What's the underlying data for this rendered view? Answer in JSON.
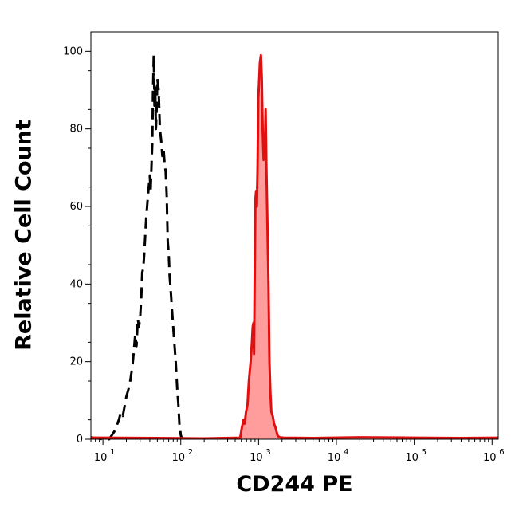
{
  "chart_data": {
    "type": "area",
    "title": "",
    "xlabel": "CD244 PE",
    "ylabel": "Relative Cell Count",
    "x_scale": "log",
    "xlim": [
      7,
      1200000
    ],
    "ylim": [
      0,
      105
    ],
    "y_ticks": [
      0,
      20,
      40,
      60,
      80,
      100
    ],
    "y_tick_labels": [
      "0",
      "20",
      "40",
      "60",
      "80",
      "100"
    ],
    "x_ticks": [
      10,
      100,
      1000,
      10000,
      100000,
      1000000
    ],
    "x_tick_labels": [
      {
        "base": "10",
        "exp": "1"
      },
      {
        "base": "10",
        "exp": "2"
      },
      {
        "base": "10",
        "exp": "3"
      },
      {
        "base": "10",
        "exp": "4"
      },
      {
        "base": "10",
        "exp": "5"
      },
      {
        "base": "10",
        "exp": "6"
      }
    ],
    "grid": false,
    "series": [
      {
        "color": "#000000",
        "style": "dashed",
        "fill": false,
        "points": [
          [
            7,
            0.5
          ],
          [
            10,
            0
          ],
          [
            12,
            0
          ],
          [
            14,
            2
          ],
          [
            16,
            5
          ],
          [
            17,
            7
          ],
          [
            18,
            6
          ],
          [
            20,
            11
          ],
          [
            22,
            14
          ],
          [
            24,
            19
          ],
          [
            25,
            23
          ],
          [
            26,
            27
          ],
          [
            27,
            24
          ],
          [
            28,
            31
          ],
          [
            29,
            29
          ],
          [
            30,
            31
          ],
          [
            31,
            36
          ],
          [
            32,
            43
          ],
          [
            33,
            44
          ],
          [
            34,
            48
          ],
          [
            36,
            57
          ],
          [
            38,
            63
          ],
          [
            40,
            68
          ],
          [
            41,
            64
          ],
          [
            42,
            70
          ],
          [
            43,
            76
          ],
          [
            44,
            89
          ],
          [
            45,
            99
          ],
          [
            46,
            86
          ],
          [
            47,
            91
          ],
          [
            48,
            80
          ],
          [
            49,
            85
          ],
          [
            50,
            93
          ],
          [
            52,
            90
          ],
          [
            54,
            80
          ],
          [
            56,
            77
          ],
          [
            58,
            73
          ],
          [
            60,
            75
          ],
          [
            62,
            71
          ],
          [
            64,
            69
          ],
          [
            66,
            63
          ],
          [
            68,
            51
          ],
          [
            70,
            48
          ],
          [
            72,
            42
          ],
          [
            75,
            37
          ],
          [
            78,
            32
          ],
          [
            82,
            26
          ],
          [
            86,
            20
          ],
          [
            90,
            13
          ],
          [
            93,
            9
          ],
          [
            96,
            4
          ],
          [
            100,
            1
          ],
          [
            104,
            0
          ]
        ]
      },
      {
        "color": "#e01010",
        "style": "solid",
        "fill": true,
        "fill_color": "#ff9d9d",
        "points": [
          [
            7,
            0.4
          ],
          [
            50,
            0.3
          ],
          [
            200,
            0.2
          ],
          [
            580,
            0.4
          ],
          [
            610,
            3
          ],
          [
            640,
            5
          ],
          [
            660,
            4
          ],
          [
            690,
            7
          ],
          [
            720,
            9
          ],
          [
            750,
            15
          ],
          [
            790,
            20
          ],
          [
            820,
            25
          ],
          [
            840,
            29
          ],
          [
            860,
            30
          ],
          [
            875,
            22
          ],
          [
            890,
            40
          ],
          [
            910,
            62
          ],
          [
            930,
            64
          ],
          [
            950,
            60
          ],
          [
            970,
            70
          ],
          [
            990,
            88
          ],
          [
            1010,
            91
          ],
          [
            1040,
            97
          ],
          [
            1070,
            99
          ],
          [
            1100,
            93
          ],
          [
            1130,
            79
          ],
          [
            1160,
            72
          ],
          [
            1200,
            73
          ],
          [
            1230,
            85
          ],
          [
            1260,
            70
          ],
          [
            1300,
            55
          ],
          [
            1340,
            40
          ],
          [
            1380,
            20
          ],
          [
            1420,
            12
          ],
          [
            1460,
            7
          ],
          [
            1520,
            6
          ],
          [
            1580,
            4
          ],
          [
            1650,
            3
          ],
          [
            1750,
            1
          ],
          [
            1850,
            0.5
          ],
          [
            2100,
            0.4
          ],
          [
            5000,
            0.3
          ],
          [
            20000,
            0.5
          ],
          [
            100000,
            0.4
          ],
          [
            400000,
            0.3
          ],
          [
            1200000,
            0.4
          ]
        ]
      }
    ]
  }
}
